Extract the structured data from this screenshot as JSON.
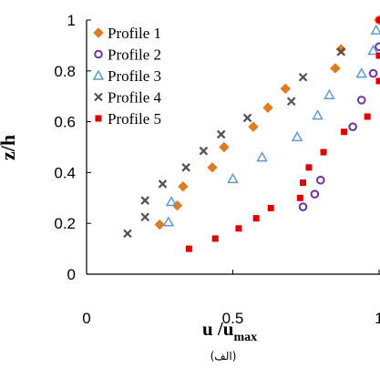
{
  "chart_data": {
    "type": "scatter",
    "ylabel": "z/h",
    "xlabel_main": "u /u",
    "xlabel_sub": "max",
    "caption": "(الف)",
    "xlim": [
      0,
      1
    ],
    "ylim": [
      0,
      1
    ],
    "x_ticks": [
      "0",
      "0.5",
      "1"
    ],
    "y_ticks": [
      "0",
      "0.2",
      "0.4",
      "0.6",
      "0.8",
      "1"
    ],
    "grid": false,
    "legend_position": "top-left",
    "series": [
      {
        "name": "Profile 1",
        "marker": "diamond",
        "color": "#E07B20",
        "points": [
          [
            0.25,
            0.195
          ],
          [
            0.31,
            0.27
          ],
          [
            0.33,
            0.345
          ],
          [
            0.43,
            0.42
          ],
          [
            0.47,
            0.5
          ],
          [
            0.57,
            0.58
          ],
          [
            0.62,
            0.655
          ],
          [
            0.68,
            0.73
          ],
          [
            0.85,
            0.81
          ],
          [
            0.87,
            0.885
          ],
          [
            1.0,
            1.0
          ]
        ]
      },
      {
        "name": "Profile 2",
        "marker": "circle",
        "color": "#7030A0",
        "points": [
          [
            0.74,
            0.265
          ],
          [
            0.78,
            0.315
          ],
          [
            0.8,
            0.37
          ],
          [
            0.91,
            0.58
          ],
          [
            0.94,
            0.685
          ],
          [
            0.98,
            0.79
          ],
          [
            1.0,
            0.895
          ]
        ]
      },
      {
        "name": "Profile 3",
        "marker": "triangle",
        "color": "#5B9BD5",
        "points": [
          [
            0.28,
            0.205
          ],
          [
            0.29,
            0.285
          ],
          [
            0.5,
            0.375
          ],
          [
            0.6,
            0.46
          ],
          [
            0.72,
            0.54
          ],
          [
            0.79,
            0.625
          ],
          [
            0.83,
            0.705
          ],
          [
            0.94,
            0.79
          ],
          [
            0.98,
            0.88
          ],
          [
            0.99,
            0.96
          ]
        ]
      },
      {
        "name": "Profile 4",
        "marker": "x",
        "color": "#505050",
        "points": [
          [
            0.14,
            0.16
          ],
          [
            0.2,
            0.225
          ],
          [
            0.2,
            0.29
          ],
          [
            0.26,
            0.355
          ],
          [
            0.34,
            0.42
          ],
          [
            0.4,
            0.485
          ],
          [
            0.46,
            0.55
          ],
          [
            0.55,
            0.615
          ],
          [
            0.7,
            0.68
          ],
          [
            0.74,
            0.775
          ],
          [
            0.87,
            0.875
          ]
        ]
      },
      {
        "name": "Profile 5",
        "marker": "square",
        "color": "#E00000",
        "points": [
          [
            0.35,
            0.1
          ],
          [
            0.44,
            0.14
          ],
          [
            0.52,
            0.18
          ],
          [
            0.58,
            0.22
          ],
          [
            0.63,
            0.26
          ],
          [
            0.73,
            0.3
          ],
          [
            0.74,
            0.36
          ],
          [
            0.76,
            0.42
          ],
          [
            0.81,
            0.48
          ],
          [
            0.88,
            0.56
          ],
          [
            0.96,
            0.62
          ],
          [
            1.0,
            0.76
          ],
          [
            1.0,
            0.86
          ],
          [
            1.0,
            1.0
          ]
        ]
      }
    ]
  }
}
